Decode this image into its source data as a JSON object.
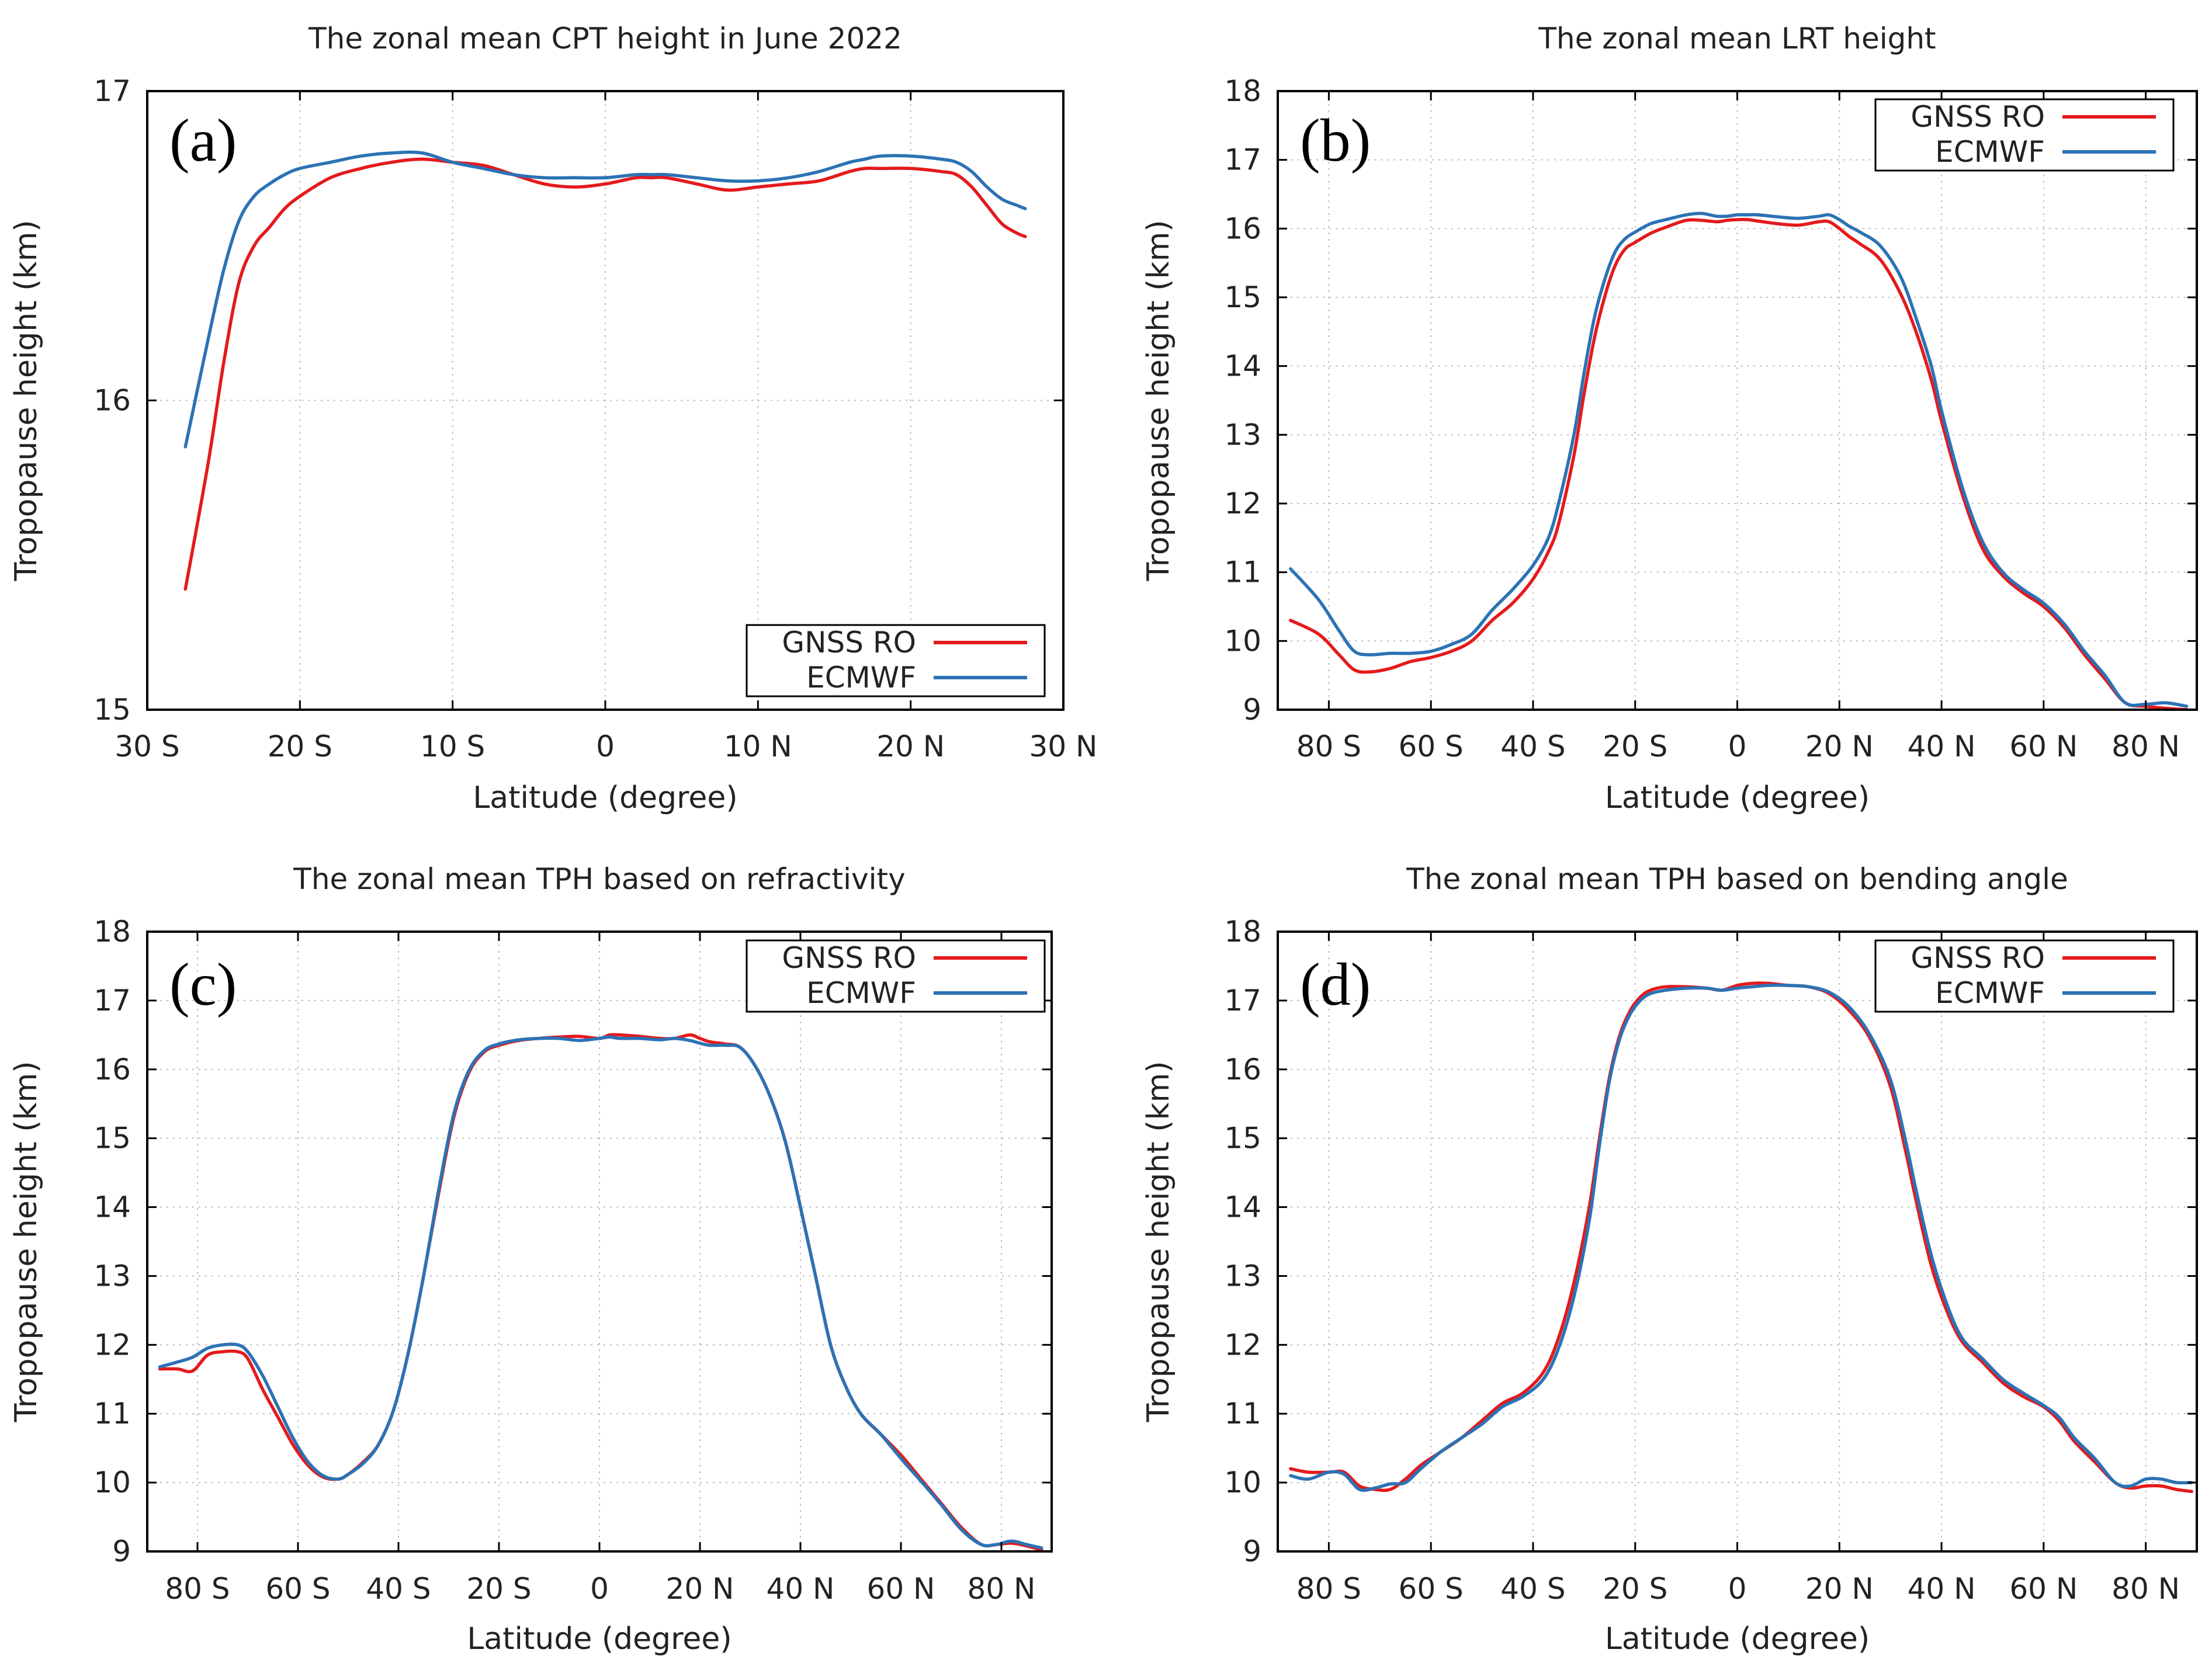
{
  "colors": {
    "gnss": "#e41a1c",
    "ecmwf": "#2c72b5"
  },
  "chart_data": [
    {
      "type": "line",
      "panel_label": "(a)",
      "title": "The zonal mean CPT height in June 2022",
      "xlabel": "Latitude (degree)",
      "ylabel": "Tropopause height (km)",
      "xlim": [
        -30,
        30
      ],
      "ylim": [
        15,
        17
      ],
      "xticks": [
        -30,
        -20,
        -10,
        0,
        10,
        20,
        30
      ],
      "xtick_labels": [
        "30 S",
        "20 S",
        "10 S",
        "0",
        "10 N",
        "20 N",
        "30 N"
      ],
      "yticks": [
        15,
        16,
        17
      ],
      "ytick_labels": [
        "15",
        "16",
        "17"
      ],
      "legend": {
        "position": "bottom-right",
        "entries": [
          "GNSS RO",
          "ECMWF"
        ]
      },
      "series": [
        {
          "name": "GNSS RO",
          "color": "#e41a1c",
          "x": [
            -27.5,
            -26,
            -25,
            -24,
            -23,
            -22,
            -21,
            -20,
            -18,
            -16,
            -14,
            -12,
            -10,
            -8,
            -6,
            -4,
            -2,
            0,
            2,
            3,
            4,
            6,
            8,
            10,
            12,
            14,
            16,
            17,
            18,
            20,
            22,
            23,
            24,
            25,
            26,
            27,
            27.5
          ],
          "values": [
            15.39,
            15.8,
            16.12,
            16.38,
            16.5,
            16.56,
            16.62,
            16.66,
            16.72,
            16.75,
            16.77,
            16.78,
            16.77,
            16.76,
            16.73,
            16.7,
            16.69,
            16.7,
            16.72,
            16.72,
            16.72,
            16.7,
            16.68,
            16.69,
            16.7,
            16.71,
            16.74,
            16.75,
            16.75,
            16.75,
            16.74,
            16.73,
            16.69,
            16.63,
            16.57,
            16.54,
            16.53
          ]
        },
        {
          "name": "ECMWF",
          "color": "#2c72b5",
          "x": [
            -27.5,
            -26,
            -25,
            -24,
            -23,
            -22,
            -21,
            -20,
            -18,
            -16,
            -14,
            -12,
            -10,
            -8,
            -6,
            -4,
            -2,
            0,
            2,
            3,
            4,
            6,
            8,
            10,
            12,
            14,
            16,
            17,
            18,
            20,
            22,
            23,
            24,
            25,
            26,
            27,
            27.5
          ],
          "values": [
            15.85,
            16.2,
            16.42,
            16.58,
            16.66,
            16.7,
            16.73,
            16.75,
            16.77,
            16.79,
            16.8,
            16.8,
            16.77,
            16.75,
            16.73,
            16.72,
            16.72,
            16.72,
            16.73,
            16.73,
            16.73,
            16.72,
            16.71,
            16.71,
            16.72,
            16.74,
            16.77,
            16.78,
            16.79,
            16.79,
            16.78,
            16.77,
            16.74,
            16.69,
            16.65,
            16.63,
            16.62
          ]
        }
      ]
    },
    {
      "type": "line",
      "panel_label": "(b)",
      "title": "The zonal mean LRT height",
      "xlabel": "Latitude (degree)",
      "ylabel": "Tropopause height (km)",
      "xlim": [
        -90,
        90
      ],
      "ylim": [
        9,
        18
      ],
      "xticks": [
        -80,
        -60,
        -40,
        -20,
        0,
        20,
        40,
        60,
        80
      ],
      "xtick_labels": [
        "80 S",
        "60 S",
        "40 S",
        "20 S",
        "0",
        "20 N",
        "40 N",
        "60 N",
        "80 N"
      ],
      "yticks": [
        9,
        10,
        11,
        12,
        13,
        14,
        15,
        16,
        17,
        18
      ],
      "ytick_labels": [
        "9",
        "10",
        "11",
        "12",
        "13",
        "14",
        "15",
        "16",
        "17",
        "18"
      ],
      "legend": {
        "position": "top-right",
        "entries": [
          "GNSS RO",
          "ECMWF"
        ]
      },
      "series": [
        {
          "name": "GNSS RO",
          "color": "#e41a1c",
          "x": [
            -87.5,
            -82,
            -78,
            -75,
            -72,
            -68,
            -64,
            -60,
            -56,
            -52,
            -48,
            -44,
            -40,
            -37,
            -35,
            -32,
            -30,
            -28,
            -26,
            -24,
            -22,
            -20,
            -17,
            -14,
            -10,
            -7,
            -4,
            -2,
            0,
            2,
            4,
            8,
            12,
            16,
            18,
            20,
            22,
            24,
            28,
            32,
            35,
            38,
            40,
            44,
            48,
            52,
            56,
            60,
            64,
            68,
            72,
            76,
            80,
            84,
            88
          ],
          "values": [
            10.3,
            10.1,
            9.8,
            9.58,
            9.55,
            9.6,
            9.7,
            9.76,
            9.85,
            10.0,
            10.3,
            10.55,
            10.9,
            11.3,
            11.7,
            12.7,
            13.6,
            14.4,
            15.0,
            15.45,
            15.7,
            15.8,
            15.93,
            16.02,
            16.12,
            16.12,
            16.1,
            16.12,
            16.13,
            16.13,
            16.11,
            16.07,
            16.05,
            16.1,
            16.1,
            16.0,
            15.88,
            15.78,
            15.55,
            15.05,
            14.5,
            13.8,
            13.2,
            12.15,
            11.35,
            10.95,
            10.7,
            10.5,
            10.2,
            9.8,
            9.45,
            9.1,
            9.05,
            9.02,
            9.0
          ]
        },
        {
          "name": "ECMWF",
          "color": "#2c72b5",
          "x": [
            -87.5,
            -82,
            -78,
            -75,
            -72,
            -68,
            -64,
            -60,
            -56,
            -52,
            -48,
            -44,
            -40,
            -37,
            -35,
            -32,
            -30,
            -28,
            -26,
            -24,
            -22,
            -20,
            -17,
            -14,
            -10,
            -7,
            -4,
            -2,
            0,
            2,
            4,
            8,
            12,
            16,
            18,
            20,
            22,
            24,
            28,
            32,
            35,
            38,
            40,
            44,
            48,
            52,
            56,
            60,
            64,
            68,
            72,
            76,
            80,
            84,
            88
          ],
          "values": [
            11.05,
            10.6,
            10.15,
            9.85,
            9.8,
            9.82,
            9.82,
            9.85,
            9.95,
            10.1,
            10.45,
            10.75,
            11.1,
            11.5,
            12.0,
            13.0,
            13.9,
            14.7,
            15.25,
            15.65,
            15.85,
            15.95,
            16.07,
            16.13,
            16.2,
            16.22,
            16.18,
            16.18,
            16.2,
            16.2,
            16.2,
            16.17,
            16.15,
            16.18,
            16.2,
            16.13,
            16.03,
            15.95,
            15.75,
            15.3,
            14.7,
            14.0,
            13.35,
            12.25,
            11.45,
            11.0,
            10.75,
            10.55,
            10.25,
            9.85,
            9.5,
            9.1,
            9.08,
            9.1,
            9.05
          ]
        }
      ]
    },
    {
      "type": "line",
      "panel_label": "(c)",
      "title": "The zonal mean TPH based on refractivity",
      "xlabel": "Latitude (degree)",
      "ylabel": "Tropopause height (km)",
      "xlim": [
        -90,
        90
      ],
      "ylim": [
        9,
        18
      ],
      "xticks": [
        -80,
        -60,
        -40,
        -20,
        0,
        20,
        40,
        60,
        80
      ],
      "xtick_labels": [
        "80 S",
        "60 S",
        "40 S",
        "20 S",
        "0",
        "20 N",
        "40 N",
        "60 N",
        "80 N"
      ],
      "yticks": [
        9,
        10,
        11,
        12,
        13,
        14,
        15,
        16,
        17,
        18
      ],
      "ytick_labels": [
        "9",
        "10",
        "11",
        "12",
        "13",
        "14",
        "15",
        "16",
        "17",
        "18"
      ],
      "legend": {
        "position": "top-right",
        "entries": [
          "GNSS RO",
          "ECMWF"
        ]
      },
      "series": [
        {
          "name": "GNSS RO",
          "color": "#e41a1c",
          "x": [
            -87.5,
            -84,
            -81,
            -78,
            -75,
            -72,
            -70,
            -67,
            -64,
            -61,
            -58,
            -55,
            -52,
            -50,
            -47,
            -44,
            -41,
            -38,
            -35,
            -32,
            -29,
            -26,
            -23,
            -20,
            -16,
            -12,
            -8,
            -4,
            0,
            2,
            4,
            8,
            12,
            15,
            18,
            20,
            22,
            25,
            28,
            31,
            34,
            37,
            40,
            43,
            46,
            49,
            52,
            56,
            60,
            64,
            68,
            72,
            76,
            79,
            82,
            85,
            88
          ],
          "values": [
            11.65,
            11.65,
            11.62,
            11.85,
            11.9,
            11.9,
            11.8,
            11.35,
            10.95,
            10.55,
            10.25,
            10.08,
            10.05,
            10.12,
            10.3,
            10.55,
            11.05,
            11.9,
            13.0,
            14.2,
            15.3,
            15.95,
            16.25,
            16.35,
            16.42,
            16.45,
            16.47,
            16.48,
            16.45,
            16.5,
            16.5,
            16.48,
            16.45,
            16.45,
            16.5,
            16.45,
            16.4,
            16.37,
            16.32,
            16.05,
            15.6,
            14.95,
            14.0,
            13.0,
            12.0,
            11.4,
            11.0,
            10.7,
            10.4,
            10.05,
            9.7,
            9.35,
            9.1,
            9.1,
            9.12,
            9.08,
            9.02
          ]
        },
        {
          "name": "ECMWF",
          "color": "#2c72b5",
          "x": [
            -87.5,
            -84,
            -81,
            -78,
            -75,
            -72,
            -70,
            -67,
            -64,
            -61,
            -58,
            -55,
            -52,
            -50,
            -47,
            -44,
            -41,
            -38,
            -35,
            -32,
            -29,
            -26,
            -23,
            -20,
            -16,
            -12,
            -8,
            -4,
            0,
            2,
            4,
            8,
            12,
            15,
            18,
            20,
            22,
            25,
            28,
            31,
            34,
            37,
            40,
            43,
            46,
            49,
            52,
            56,
            60,
            64,
            68,
            72,
            76,
            79,
            82,
            85,
            88
          ],
          "values": [
            11.68,
            11.75,
            11.82,
            11.95,
            12.0,
            12.0,
            11.9,
            11.55,
            11.1,
            10.65,
            10.3,
            10.1,
            10.05,
            10.12,
            10.28,
            10.55,
            11.05,
            11.9,
            13.0,
            14.25,
            15.35,
            15.98,
            16.27,
            16.37,
            16.43,
            16.45,
            16.45,
            16.42,
            16.45,
            16.47,
            16.45,
            16.45,
            16.43,
            16.45,
            16.42,
            16.38,
            16.35,
            16.35,
            16.32,
            16.05,
            15.6,
            14.95,
            14.0,
            13.0,
            12.0,
            11.4,
            11.0,
            10.7,
            10.35,
            10.02,
            9.68,
            9.32,
            9.1,
            9.1,
            9.15,
            9.1,
            9.05
          ]
        }
      ]
    },
    {
      "type": "line",
      "panel_label": "(d)",
      "title": "The zonal mean TPH based on bending angle",
      "xlabel": "Latitude (degree)",
      "ylabel": "Tropopause height (km)",
      "xlim": [
        -90,
        90
      ],
      "ylim": [
        9,
        18
      ],
      "xticks": [
        -80,
        -60,
        -40,
        -20,
        0,
        20,
        40,
        60,
        80
      ],
      "xtick_labels": [
        "80 S",
        "60 S",
        "40 S",
        "20 S",
        "0",
        "20 N",
        "40 N",
        "60 N",
        "80 N"
      ],
      "yticks": [
        9,
        10,
        11,
        12,
        13,
        14,
        15,
        16,
        17,
        18
      ],
      "ytick_labels": [
        "9",
        "10",
        "11",
        "12",
        "13",
        "14",
        "15",
        "16",
        "17",
        "18"
      ],
      "legend": {
        "position": "top-right",
        "entries": [
          "GNSS RO",
          "ECMWF"
        ]
      },
      "series": [
        {
          "name": "GNSS RO",
          "color": "#e41a1c",
          "x": [
            -87.5,
            -84,
            -80,
            -77,
            -74,
            -71,
            -68,
            -65,
            -62,
            -58,
            -54,
            -50,
            -46,
            -42,
            -38,
            -35,
            -32,
            -29,
            -27,
            -25,
            -23,
            -21,
            -19,
            -17,
            -14,
            -10,
            -6,
            -3,
            0,
            3,
            6,
            10,
            14,
            18,
            22,
            26,
            30,
            33,
            35,
            38,
            41,
            44,
            48,
            52,
            56,
            60,
            63,
            66,
            70,
            74,
            77,
            80,
            83,
            86,
            89
          ],
          "values": [
            10.2,
            10.15,
            10.15,
            10.15,
            9.95,
            9.9,
            9.9,
            10.05,
            10.25,
            10.45,
            10.65,
            10.9,
            11.15,
            11.3,
            11.6,
            12.1,
            12.9,
            14.0,
            15.0,
            15.9,
            16.5,
            16.85,
            17.05,
            17.15,
            17.2,
            17.2,
            17.18,
            17.15,
            17.22,
            17.25,
            17.25,
            17.22,
            17.2,
            17.1,
            16.85,
            16.45,
            15.75,
            14.8,
            14.1,
            13.15,
            12.5,
            12.05,
            11.75,
            11.45,
            11.25,
            11.1,
            10.9,
            10.6,
            10.3,
            10.0,
            9.92,
            9.95,
            9.95,
            9.9,
            9.87
          ]
        },
        {
          "name": "ECMWF",
          "color": "#2c72b5",
          "x": [
            -87.5,
            -84,
            -80,
            -77,
            -74,
            -71,
            -68,
            -65,
            -62,
            -58,
            -54,
            -50,
            -46,
            -42,
            -38,
            -35,
            -32,
            -29,
            -27,
            -25,
            -23,
            -21,
            -19,
            -17,
            -14,
            -10,
            -6,
            -3,
            0,
            3,
            6,
            10,
            14,
            18,
            22,
            26,
            30,
            33,
            35,
            38,
            41,
            44,
            48,
            52,
            56,
            60,
            63,
            66,
            70,
            74,
            77,
            80,
            83,
            86,
            89
          ],
          "values": [
            10.1,
            10.05,
            10.15,
            10.12,
            9.9,
            9.92,
            9.98,
            10.0,
            10.2,
            10.45,
            10.65,
            10.85,
            11.1,
            11.25,
            11.5,
            11.95,
            12.7,
            13.8,
            14.9,
            15.85,
            16.45,
            16.8,
            17.0,
            17.1,
            17.15,
            17.18,
            17.18,
            17.15,
            17.18,
            17.2,
            17.22,
            17.22,
            17.2,
            17.12,
            16.9,
            16.5,
            15.85,
            14.95,
            14.25,
            13.3,
            12.6,
            12.1,
            11.8,
            11.5,
            11.3,
            11.12,
            10.95,
            10.65,
            10.35,
            10.0,
            9.95,
            10.05,
            10.05,
            10.0,
            10.0
          ]
        }
      ]
    }
  ]
}
